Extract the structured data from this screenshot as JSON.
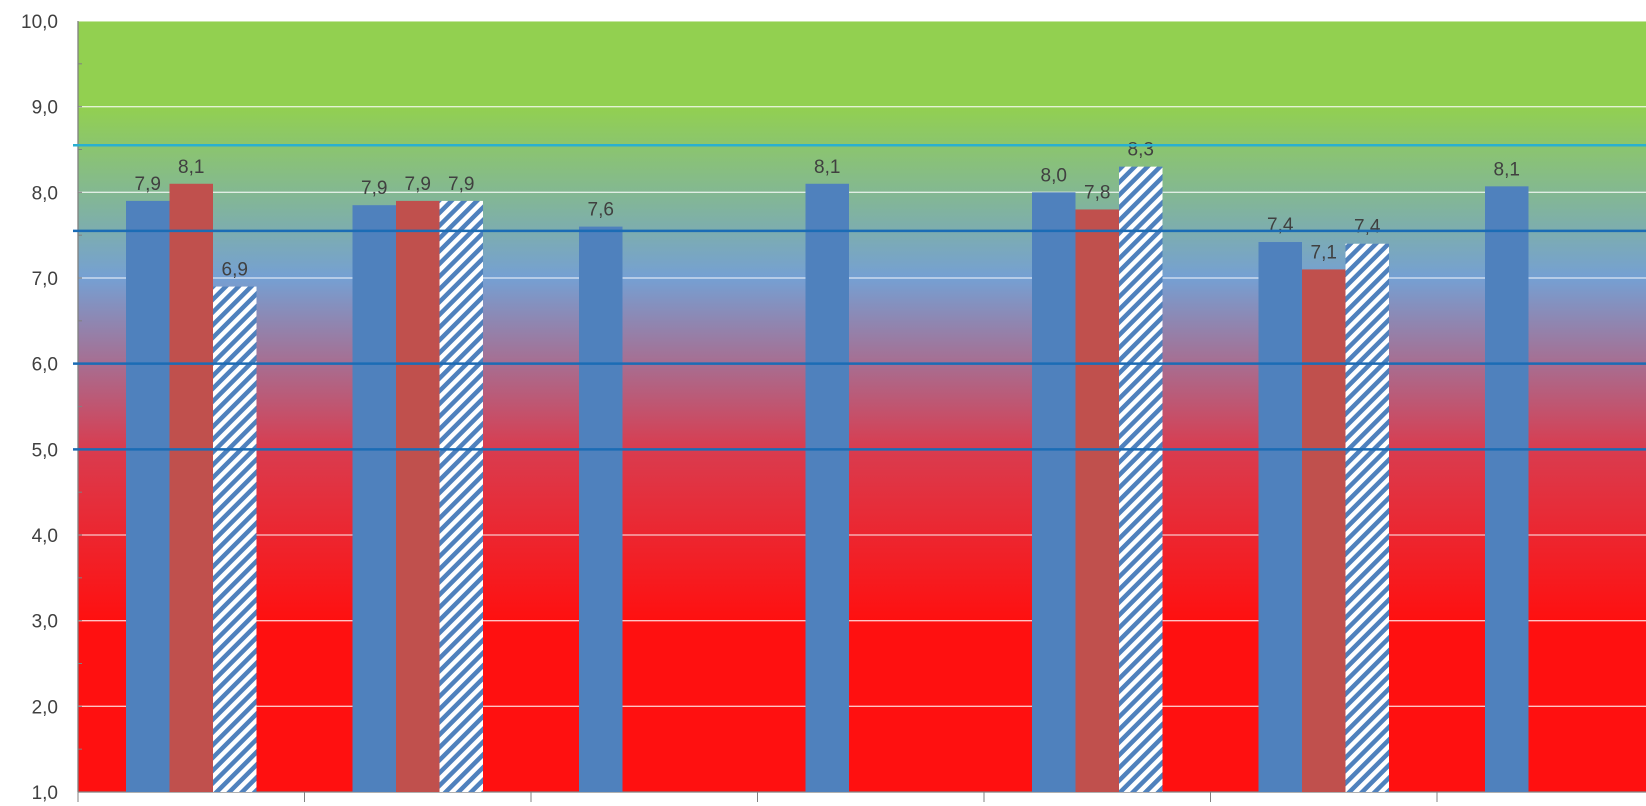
{
  "chart_data": {
    "type": "bar",
    "ylim": [
      1,
      10
    ],
    "yticks": [
      "1,0",
      "2,0",
      "3,0",
      "4,0",
      "5,0",
      "6,0",
      "7,0",
      "8,0",
      "9,0",
      "10,0"
    ],
    "grid": true,
    "background": {
      "type": "vertical-gradient",
      "stops": [
        {
          "value": 10,
          "color": "#92d050"
        },
        {
          "value": 9,
          "color": "#92d050"
        },
        {
          "value": 7,
          "color": "#75a0d3"
        },
        {
          "value": 5,
          "color": "#d93c4f"
        },
        {
          "value": 3,
          "color": "#ff1010"
        },
        {
          "value": 1,
          "color": "#ff1010"
        }
      ]
    },
    "reference_lines": [
      {
        "value": 8.55,
        "color": "#29b0d0"
      },
      {
        "value": 7.55,
        "color": "#1b6cb5"
      },
      {
        "value": 6.0,
        "color": "#1b6cb5"
      },
      {
        "value": 5.0,
        "color": "#1b6cb5"
      }
    ],
    "series": [
      {
        "color": "#4f81bd",
        "pattern": "solid",
        "values": [
          7.9,
          7.85,
          7.6,
          8.1,
          8.0,
          7.42,
          8.07
        ],
        "labels": [
          "7,9",
          "7,9",
          "7,6",
          "8,1",
          "8,0",
          "7,4",
          "8,1"
        ]
      },
      {
        "color": "#c0504d",
        "pattern": "solid",
        "values": [
          8.1,
          7.9,
          null,
          null,
          7.8,
          7.1,
          null
        ],
        "labels": [
          "8,1",
          "7,9",
          null,
          null,
          "7,8",
          "7,1",
          null
        ]
      },
      {
        "color": "#4f81bd",
        "pattern": "diagonal-stripes",
        "values": [
          6.9,
          7.9,
          null,
          null,
          8.3,
          7.4,
          null
        ],
        "labels": [
          "6,9",
          "7,9",
          null,
          null,
          "8,3",
          "7,4",
          null
        ]
      }
    ]
  }
}
